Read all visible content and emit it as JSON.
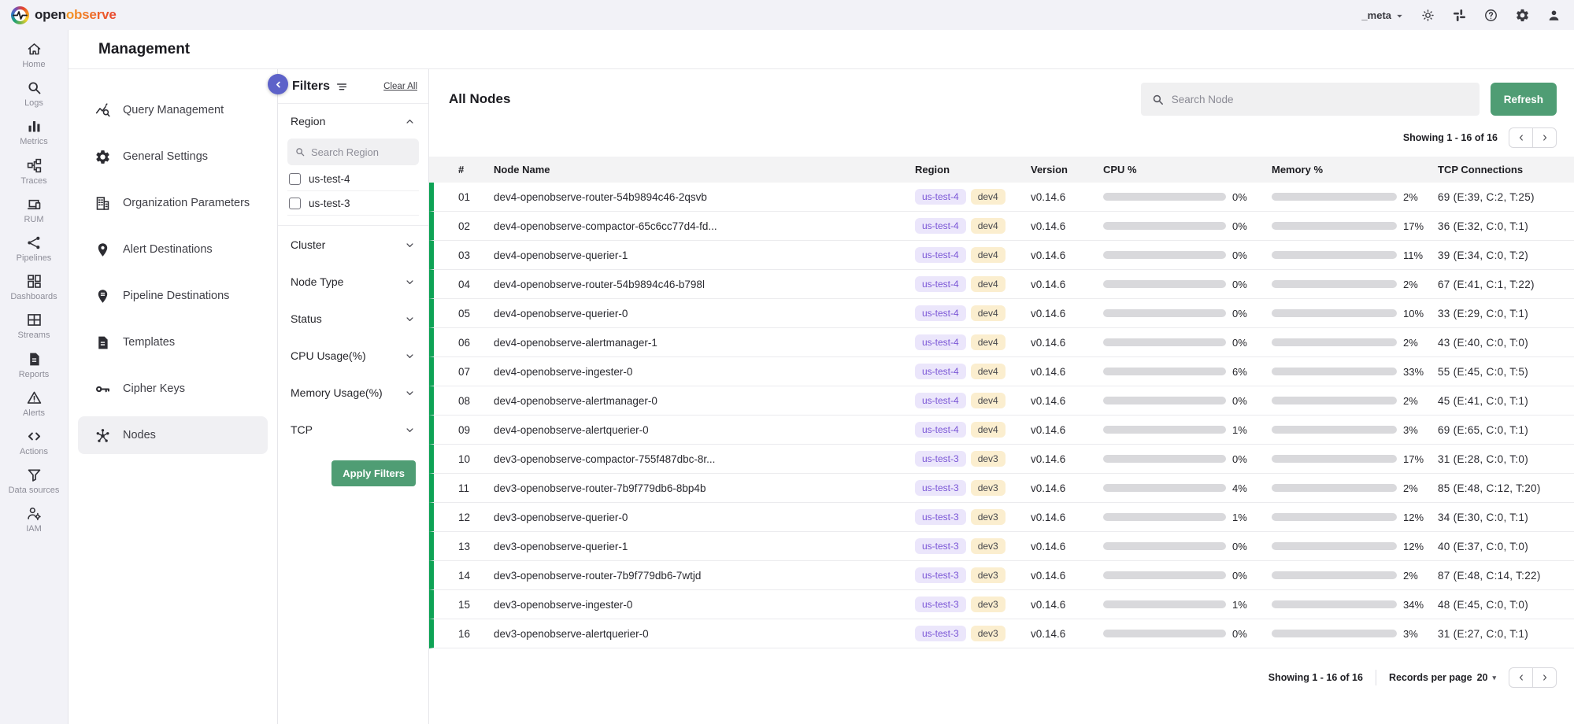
{
  "topbar": {
    "brand_left": "open",
    "brand_right": "observe",
    "org_selector": "_meta",
    "icons": [
      {
        "name": "theme-toggle-icon",
        "glyph": "sun"
      },
      {
        "name": "slack-icon",
        "glyph": "slack"
      },
      {
        "name": "help-icon",
        "glyph": "help"
      },
      {
        "name": "settings-icon",
        "glyph": "gear"
      },
      {
        "name": "account-icon",
        "glyph": "person"
      }
    ]
  },
  "page": {
    "title": "Management"
  },
  "left_rail": {
    "items": [
      {
        "label": "Home",
        "icon": "home"
      },
      {
        "label": "Logs",
        "icon": "search"
      },
      {
        "label": "Metrics",
        "icon": "metrics"
      },
      {
        "label": "Traces",
        "icon": "traces"
      },
      {
        "label": "RUM",
        "icon": "rum"
      },
      {
        "label": "Pipelines",
        "icon": "pipelines"
      },
      {
        "label": "Dashboards",
        "icon": "dashboards"
      },
      {
        "label": "Streams",
        "icon": "streams"
      },
      {
        "label": "Reports",
        "icon": "reports"
      },
      {
        "label": "Alerts",
        "icon": "alerts"
      },
      {
        "label": "Actions",
        "icon": "actions"
      },
      {
        "label": "Data sources",
        "icon": "funnel"
      },
      {
        "label": "IAM",
        "icon": "iam"
      }
    ]
  },
  "settings_nav": {
    "items": [
      {
        "label": "Query Management",
        "icon": "query",
        "active": false
      },
      {
        "label": "General Settings",
        "icon": "gear",
        "active": false
      },
      {
        "label": "Organization Parameters",
        "icon": "building",
        "active": false
      },
      {
        "label": "Alert Destinations",
        "icon": "pin",
        "active": false
      },
      {
        "label": "Pipeline Destinations",
        "icon": "pinlines",
        "active": false
      },
      {
        "label": "Templates",
        "icon": "doc",
        "active": false
      },
      {
        "label": "Cipher Keys",
        "icon": "key",
        "active": false
      },
      {
        "label": "Nodes",
        "icon": "hub",
        "active": true
      }
    ]
  },
  "filters": {
    "title": "Filters",
    "clear_all": "Clear All",
    "region": {
      "label": "Region",
      "search_placeholder": "Search Region",
      "options": [
        {
          "label": "us-test-4",
          "checked": false
        },
        {
          "label": "us-test-3",
          "checked": false
        }
      ]
    },
    "collapsed_sections": [
      "Cluster",
      "Node Type",
      "Status",
      "CPU Usage(%)",
      "Memory Usage(%)",
      "TCP"
    ],
    "apply_button": "Apply Filters"
  },
  "content": {
    "title": "All Nodes",
    "search_placeholder": "Search Node",
    "refresh_button": "Refresh",
    "showing_top": "Showing 1 - 16 of 16",
    "table": {
      "columns": [
        "#",
        "Node Name",
        "Region",
        "Version",
        "CPU %",
        "Memory %",
        "TCP Connections"
      ],
      "rows": [
        {
          "num": "01",
          "name": "dev4-openobserve-router-54b9894c46-2qsvb",
          "region": "us-test-4",
          "env": "dev4",
          "version": "v0.14.6",
          "cpu": 0,
          "cpu_label": "0%",
          "mem": 2,
          "mem_label": "2%",
          "tcp": "69 (E:39, C:2, T:25)"
        },
        {
          "num": "02",
          "name": "dev4-openobserve-compactor-65c6cc77d4-fd...",
          "region": "us-test-4",
          "env": "dev4",
          "version": "v0.14.6",
          "cpu": 0,
          "cpu_label": "0%",
          "mem": 17,
          "mem_label": "17%",
          "tcp": "36 (E:32, C:0, T:1)"
        },
        {
          "num": "03",
          "name": "dev4-openobserve-querier-1",
          "region": "us-test-4",
          "env": "dev4",
          "version": "v0.14.6",
          "cpu": 0,
          "cpu_label": "0%",
          "mem": 11,
          "mem_label": "11%",
          "tcp": "39 (E:34, C:0, T:2)"
        },
        {
          "num": "04",
          "name": "dev4-openobserve-router-54b9894c46-b798l",
          "region": "us-test-4",
          "env": "dev4",
          "version": "v0.14.6",
          "cpu": 0,
          "cpu_label": "0%",
          "mem": 2,
          "mem_label": "2%",
          "tcp": "67 (E:41, C:1, T:22)"
        },
        {
          "num": "05",
          "name": "dev4-openobserve-querier-0",
          "region": "us-test-4",
          "env": "dev4",
          "version": "v0.14.6",
          "cpu": 0,
          "cpu_label": "0%",
          "mem": 10,
          "mem_label": "10%",
          "tcp": "33 (E:29, C:0, T:1)"
        },
        {
          "num": "06",
          "name": "dev4-openobserve-alertmanager-1",
          "region": "us-test-4",
          "env": "dev4",
          "version": "v0.14.6",
          "cpu": 0,
          "cpu_label": "0%",
          "mem": 2,
          "mem_label": "2%",
          "tcp": "43 (E:40, C:0, T:0)"
        },
        {
          "num": "07",
          "name": "dev4-openobserve-ingester-0",
          "region": "us-test-4",
          "env": "dev4",
          "version": "v0.14.6",
          "cpu": 6,
          "cpu_label": "6%",
          "mem": 33,
          "mem_label": "33%",
          "tcp": "55 (E:45, C:0, T:5)"
        },
        {
          "num": "08",
          "name": "dev4-openobserve-alertmanager-0",
          "region": "us-test-4",
          "env": "dev4",
          "version": "v0.14.6",
          "cpu": 0,
          "cpu_label": "0%",
          "mem": 2,
          "mem_label": "2%",
          "tcp": "45 (E:41, C:0, T:1)"
        },
        {
          "num": "09",
          "name": "dev4-openobserve-alertquerier-0",
          "region": "us-test-4",
          "env": "dev4",
          "version": "v0.14.6",
          "cpu": 1,
          "cpu_label": "1%",
          "mem": 3,
          "mem_label": "3%",
          "tcp": "69 (E:65, C:0, T:1)"
        },
        {
          "num": "10",
          "name": "dev3-openobserve-compactor-755f487dbc-8r...",
          "region": "us-test-3",
          "env": "dev3",
          "version": "v0.14.6",
          "cpu": 0,
          "cpu_label": "0%",
          "mem": 17,
          "mem_label": "17%",
          "tcp": "31 (E:28, C:0, T:0)"
        },
        {
          "num": "11",
          "name": "dev3-openobserve-router-7b9f779db6-8bp4b",
          "region": "us-test-3",
          "env": "dev3",
          "version": "v0.14.6",
          "cpu": 4,
          "cpu_label": "4%",
          "mem": 2,
          "mem_label": "2%",
          "tcp": "85 (E:48, C:12, T:20)"
        },
        {
          "num": "12",
          "name": "dev3-openobserve-querier-0",
          "region": "us-test-3",
          "env": "dev3",
          "version": "v0.14.6",
          "cpu": 1,
          "cpu_label": "1%",
          "mem": 12,
          "mem_label": "12%",
          "tcp": "34 (E:30, C:0, T:1)"
        },
        {
          "num": "13",
          "name": "dev3-openobserve-querier-1",
          "region": "us-test-3",
          "env": "dev3",
          "version": "v0.14.6",
          "cpu": 0,
          "cpu_label": "0%",
          "mem": 12,
          "mem_label": "12%",
          "tcp": "40 (E:37, C:0, T:0)"
        },
        {
          "num": "14",
          "name": "dev3-openobserve-router-7b9f779db6-7wtjd",
          "region": "us-test-3",
          "env": "dev3",
          "version": "v0.14.6",
          "cpu": 0,
          "cpu_label": "0%",
          "mem": 2,
          "mem_label": "2%",
          "tcp": "87 (E:48, C:14, T:22)"
        },
        {
          "num": "15",
          "name": "dev3-openobserve-ingester-0",
          "region": "us-test-3",
          "env": "dev3",
          "version": "v0.14.6",
          "cpu": 1,
          "cpu_label": "1%",
          "mem": 34,
          "mem_label": "34%",
          "tcp": "48 (E:45, C:0, T:0)"
        },
        {
          "num": "16",
          "name": "dev3-openobserve-alertquerier-0",
          "region": "us-test-3",
          "env": "dev3",
          "version": "v0.14.6",
          "cpu": 0,
          "cpu_label": "0%",
          "mem": 3,
          "mem_label": "3%",
          "tcp": "31 (E:27, C:0, T:1)"
        }
      ]
    },
    "footer": {
      "showing": "Showing 1 - 16 of 16",
      "records_per_page_label": "Records per page",
      "records_per_page_value": "20"
    }
  },
  "colors": {
    "accent_green": "#4f9d74",
    "row_status_green": "#0ea355",
    "collapse_button_purple": "#5d62c9",
    "region_pill_bg": "#ebe6fb",
    "region_pill_text": "#7a55d6",
    "env_pill_bg": "#fbeecf",
    "bar_fill": "#5560b7",
    "bar_track": "#d9d9dc"
  }
}
